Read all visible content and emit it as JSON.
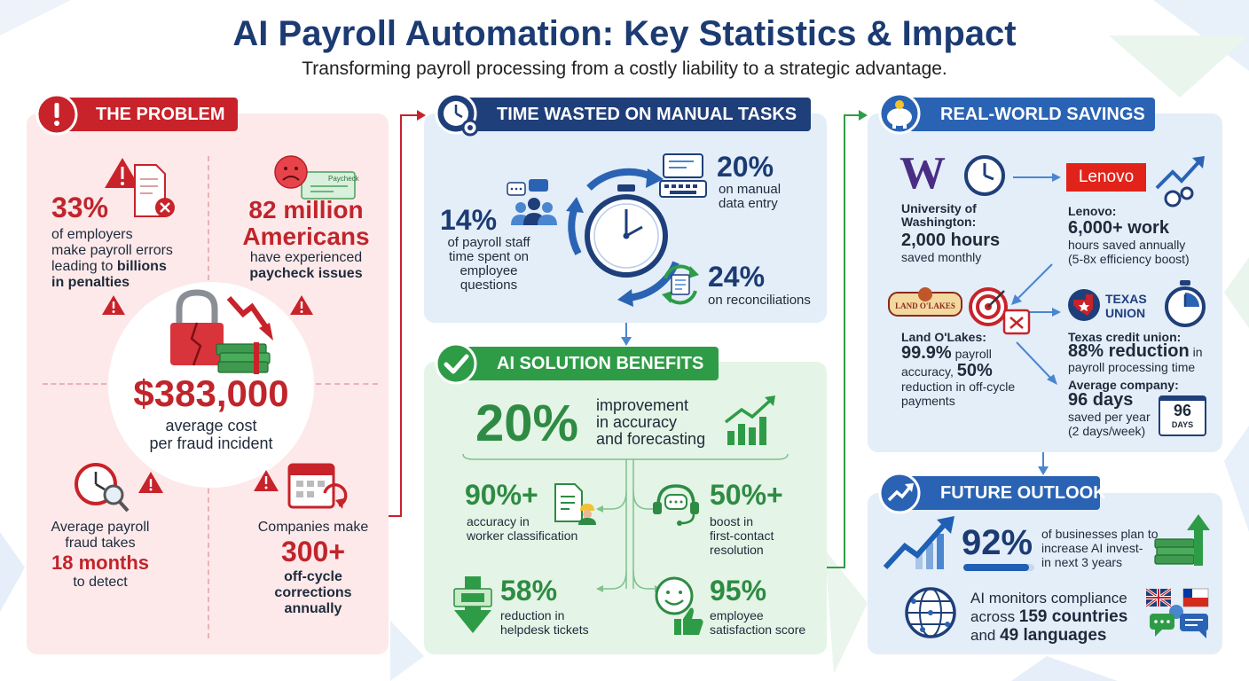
{
  "header": {
    "title": "AI Payroll Automation: Key Statistics & Impact",
    "subtitle": "Transforming payroll processing from a costly liability to a strategic advantage."
  },
  "problem": {
    "heading": "THE PROBLEM",
    "stat1": {
      "value": "33%",
      "line1": "of employers",
      "line2": "make payroll errors",
      "line3a": "leading to ",
      "line3b": "billions",
      "line4": "in penalties"
    },
    "stat2": {
      "value1": "82 million",
      "value2": "Americans",
      "line1": "have experienced",
      "line2": "paycheck issues",
      "doc_label": "Paycheck"
    },
    "stat3": {
      "value": "$383,000",
      "line1": "average cost",
      "line2": "per fraud incident"
    },
    "stat4": {
      "line1": "Average payroll",
      "line2": "fraud takes",
      "value": "18 months",
      "line3": "to detect"
    },
    "stat5": {
      "line1": "Companies make",
      "value": "300+",
      "line2": "off-cycle",
      "line3": "corrections",
      "line4": "annually"
    }
  },
  "time": {
    "heading": "TIME WASTED ON MANUAL TASKS",
    "s1": {
      "value": "14%",
      "line1": "of payroll staff",
      "line2": "time spent on",
      "line3": "employee",
      "line4": "questions"
    },
    "s2": {
      "value": "20%",
      "line1": "on manual",
      "line2": "data entry"
    },
    "s3": {
      "value": "24%",
      "line1": "on reconciliations"
    }
  },
  "solution": {
    "heading": "AI SOLUTION BENEFITS",
    "main": {
      "value": "20%",
      "line1": "improvement",
      "line2": "in accuracy",
      "line3": "and forecasting"
    },
    "b1": {
      "value": "90%+",
      "line1": "accuracy in",
      "line2": "worker classification"
    },
    "b2": {
      "value": "50%+",
      "line1": "boost in",
      "line2": "first-contact",
      "line3": "resolution"
    },
    "b3": {
      "value": "58%",
      "line1": "reduction in",
      "line2": "helpdesk tickets"
    },
    "b4": {
      "value": "95%",
      "line1": "employee",
      "line2": "satisfaction score"
    }
  },
  "savings": {
    "heading": "REAL-WORLD SAVINGS",
    "uw": {
      "logo": "W",
      "line1": "University of",
      "line2": "Washington:",
      "value": "2,000 hours",
      "line3": "saved monthly"
    },
    "lenovo": {
      "logo": "Lenovo",
      "line1": "Lenovo:",
      "value": "6,000+ work",
      "line2": "hours saved annually",
      "line3": "(5-8x efficiency boost)"
    },
    "lol": {
      "logo": "LAND O'LAKES",
      "line1": "Land O'Lakes:",
      "value1": "99.9%",
      "t1": " payroll",
      "line2a": "accuracy, ",
      "value2": "50%",
      "line3": "reduction in off-cycle",
      "line4": "payments"
    },
    "texas": {
      "logo1": "TEXAS",
      "logo2": "UNION",
      "line1": "Texas credit union:",
      "value": "88% reduction",
      "t1": " in",
      "line2": "payroll processing time"
    },
    "avg": {
      "line1": "Average company:",
      "value": "96 days",
      "line2": "saved per year",
      "line3": "(2 days/week)",
      "cal_num": "96",
      "cal_label": "DAYS"
    }
  },
  "future": {
    "heading": "FUTURE OUTLOOK",
    "f1": {
      "value": "92%",
      "line1": "of businesses plan to",
      "line2": "increase AI invest-",
      "line3": "in next 3 years"
    },
    "f2": {
      "line1": "AI monitors compliance",
      "line2a": "across ",
      "value1": "159 countries",
      "line3a": "and ",
      "value2": "49 languages"
    }
  },
  "colors": {
    "red": "#c8222a",
    "navy": "#1f3f7a",
    "green": "#2e9c47",
    "blue": "#2a63b4"
  }
}
